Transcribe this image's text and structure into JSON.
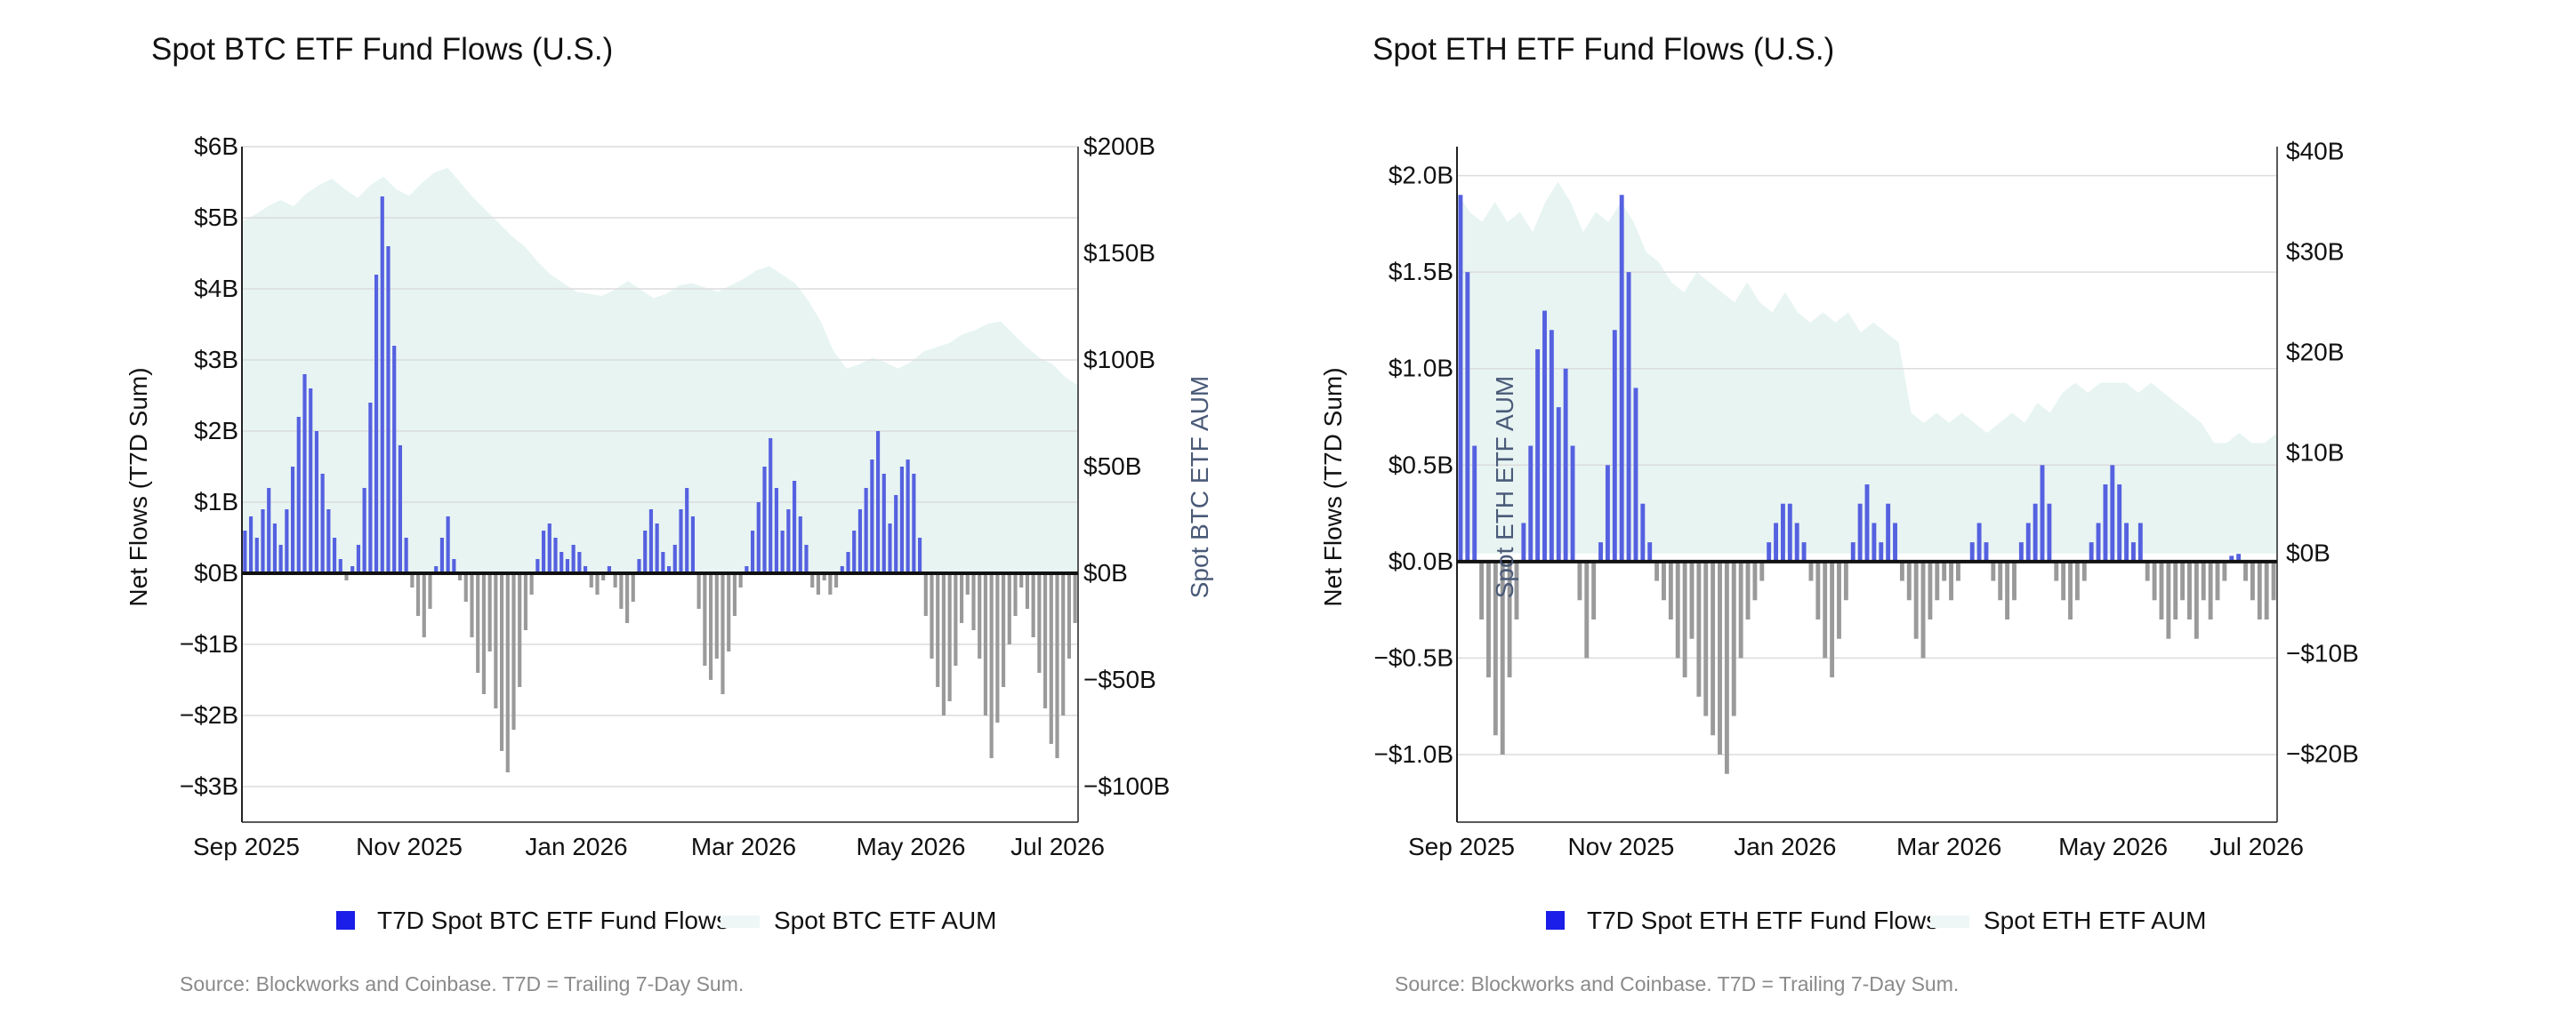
{
  "chart_data": [
    {
      "type": "bar",
      "title": "Spot BTC ETF Fund Flows (U.S.)",
      "ylabel": "Net Flows (T7D Sum)",
      "y2label": "Spot BTC ETF AUM",
      "ylim": [
        -3.5,
        6
      ],
      "y2lim": [
        -116.67,
        200
      ],
      "yticks": [
        6,
        5,
        4,
        3,
        2,
        1,
        0,
        -1,
        -2,
        -3
      ],
      "ytick_labels": [
        "$6B",
        "$5B",
        "$4B",
        "$3B",
        "$2B",
        "$1B",
        "$0B",
        "−$1B",
        "−$2B",
        "−$3B"
      ],
      "y2ticks": [
        200,
        150,
        100,
        50,
        0,
        -50,
        -100
      ],
      "y2tick_labels": [
        "$200B",
        "$150B",
        "$100B",
        "$50B",
        "$0B",
        "−$50B",
        "−$100B"
      ],
      "xticks": [
        "Sep 2025",
        "Nov 2025",
        "Jan 2026",
        "Mar 2026",
        "May 2026",
        "Jul 2026"
      ],
      "series": [
        {
          "name": "T7D Spot BTC ETF Fund Flows",
          "kind": "bar",
          "positive_color": "#5561e0",
          "negative_color": "#9a9a9a",
          "values": [
            0.6,
            0.8,
            0.5,
            0.9,
            1.2,
            0.7,
            0.4,
            0.9,
            1.5,
            2.2,
            2.8,
            2.6,
            2.0,
            1.4,
            0.9,
            0.5,
            0.2,
            -0.1,
            0.1,
            0.4,
            1.2,
            2.4,
            4.2,
            5.3,
            4.6,
            3.2,
            1.8,
            0.5,
            -0.2,
            -0.6,
            -0.9,
            -0.5,
            0.1,
            0.5,
            0.8,
            0.2,
            -0.1,
            -0.4,
            -0.9,
            -1.4,
            -1.7,
            -1.1,
            -1.9,
            -2.5,
            -2.8,
            -2.2,
            -1.6,
            -0.8,
            -0.3,
            0.2,
            0.6,
            0.7,
            0.5,
            0.3,
            0.2,
            0.4,
            0.3,
            0.1,
            -0.2,
            -0.3,
            -0.1,
            0.1,
            -0.2,
            -0.5,
            -0.7,
            -0.4,
            0.2,
            0.6,
            0.9,
            0.7,
            0.3,
            0.1,
            0.4,
            0.9,
            1.2,
            0.8,
            -0.5,
            -1.3,
            -1.5,
            -1.2,
            -1.7,
            -1.1,
            -0.6,
            -0.2,
            0.1,
            0.6,
            1.0,
            1.5,
            1.9,
            1.2,
            0.6,
            0.9,
            1.3,
            0.8,
            0.4,
            -0.2,
            -0.3,
            -0.1,
            -0.3,
            -0.2,
            0.1,
            0.3,
            0.6,
            0.9,
            1.2,
            1.6,
            2.0,
            1.4,
            0.7,
            1.1,
            1.5,
            1.6,
            1.4,
            0.5,
            -0.6,
            -1.2,
            -1.6,
            -2.0,
            -1.8,
            -1.3,
            -0.7,
            -0.3,
            -0.8,
            -1.2,
            -2.0,
            -2.6,
            -2.1,
            -1.6,
            -1.0,
            -0.6,
            -0.2,
            -0.5,
            -0.9,
            -1.4,
            -1.9,
            -2.4,
            -2.6,
            -2.0,
            -1.2,
            -0.7
          ]
        },
        {
          "name": "Spot BTC ETF AUM",
          "kind": "area",
          "color": "#e4f3f1",
          "values": [
            165,
            168,
            172,
            175,
            172,
            178,
            182,
            185,
            180,
            176,
            182,
            186,
            180,
            177,
            183,
            188,
            190,
            183,
            176,
            170,
            164,
            158,
            153,
            146,
            140,
            136,
            132,
            131,
            130,
            133,
            137,
            133,
            129,
            131,
            135,
            136,
            134,
            132,
            135,
            138,
            142,
            144,
            140,
            136,
            128,
            118,
            104,
            96,
            98,
            101,
            99,
            96,
            99,
            104,
            106,
            108,
            112,
            114,
            117,
            118,
            112,
            106,
            101,
            98,
            92,
            88
          ]
        }
      ]
    },
    {
      "type": "bar",
      "title": "Spot ETH ETF Fund Flows (U.S.)",
      "ylabel": "Net Flows (T7D Sum)",
      "y2label": "Spot ETH ETF AUM",
      "ylim": [
        -1.35,
        2.15
      ],
      "y2lim": [
        -26.75,
        40.5
      ],
      "yticks": [
        2.0,
        1.5,
        1.0,
        0.5,
        0.0,
        -0.5,
        -1.0
      ],
      "ytick_labels": [
        "$2.0B",
        "$1.5B",
        "$1.0B",
        "$0.5B",
        "$0.0B",
        "−$0.5B",
        "−$1.0B"
      ],
      "y2ticks": [
        40,
        30,
        20,
        10,
        0,
        -10,
        -20
      ],
      "y2tick_labels": [
        "$40B",
        "$30B",
        "$20B",
        "$10B",
        "$0B",
        "−$10B",
        "−$20B"
      ],
      "xticks": [
        "Sep 2025",
        "Nov 2025",
        "Jan 2026",
        "Mar 2026",
        "May 2026",
        "Jul 2026"
      ],
      "series": [
        {
          "name": "T7D Spot ETH ETF Fund Flows",
          "kind": "bar",
          "positive_color": "#5561e0",
          "negative_color": "#9a9a9a",
          "values": [
            1.9,
            1.5,
            0.6,
            -0.3,
            -0.6,
            -0.9,
            -1.0,
            -0.6,
            -0.3,
            0.2,
            0.6,
            1.1,
            1.3,
            1.2,
            0.8,
            1.0,
            0.6,
            -0.2,
            -0.5,
            -0.3,
            0.1,
            0.5,
            1.2,
            1.9,
            1.5,
            0.9,
            0.3,
            0.1,
            -0.1,
            -0.2,
            -0.3,
            -0.5,
            -0.6,
            -0.4,
            -0.7,
            -0.8,
            -0.9,
            -1.0,
            -1.1,
            -0.8,
            -0.5,
            -0.3,
            -0.2,
            -0.1,
            0.1,
            0.2,
            0.3,
            0.3,
            0.2,
            0.1,
            -0.1,
            -0.3,
            -0.5,
            -0.6,
            -0.4,
            -0.2,
            0.1,
            0.3,
            0.4,
            0.2,
            0.1,
            0.3,
            0.2,
            -0.1,
            -0.2,
            -0.4,
            -0.5,
            -0.3,
            -0.2,
            -0.1,
            -0.2,
            -0.1,
            0.0,
            0.1,
            0.2,
            0.1,
            -0.1,
            -0.2,
            -0.3,
            -0.2,
            0.1,
            0.2,
            0.3,
            0.5,
            0.3,
            -0.1,
            -0.2,
            -0.3,
            -0.2,
            -0.1,
            0.1,
            0.2,
            0.4,
            0.5,
            0.4,
            0.2,
            0.1,
            0.2,
            -0.1,
            -0.2,
            -0.3,
            -0.4,
            -0.3,
            -0.2,
            -0.3,
            -0.4,
            -0.2,
            -0.3,
            -0.2,
            -0.1,
            0.03,
            0.04,
            -0.1,
            -0.2,
            -0.3,
            -0.3,
            -0.2
          ]
        },
        {
          "name": "Spot ETH ETF AUM",
          "kind": "area",
          "color": "#e4f3f1",
          "values": [
            36,
            34,
            33,
            35,
            33,
            34,
            32,
            35,
            37,
            35,
            32,
            34,
            33,
            35,
            33,
            30,
            29,
            27,
            26,
            28,
            27,
            26,
            25,
            27,
            25,
            24,
            26,
            24,
            23,
            24,
            23,
            24,
            22,
            23,
            22,
            21,
            14,
            13,
            14,
            13,
            14,
            13,
            12,
            13,
            14,
            13,
            15,
            14,
            16,
            17,
            16,
            17,
            17,
            17,
            16,
            17,
            16,
            15,
            14,
            13,
            11,
            11,
            12,
            11,
            11,
            12
          ]
        }
      ]
    }
  ],
  "charts": [
    {
      "title": "Spot BTC ETF Fund Flows (U.S.)",
      "legend": {
        "flows_label": "T7D Spot BTC ETF Fund Flows",
        "aum_label": "Spot BTC ETF AUM"
      },
      "source": "Source: Blockworks and Coinbase. T7D = Trailing 7-Day Sum."
    },
    {
      "title": "Spot ETH ETF Fund Flows (U.S.)",
      "legend": {
        "flows_label": "T7D Spot ETH ETF Fund Flows",
        "aum_label": "Spot ETH ETF AUM"
      },
      "source": "Source: Blockworks and Coinbase. T7D = Trailing 7-Day Sum."
    }
  ],
  "colors": {
    "positive_bar": "#5561e0",
    "negative_bar": "#9a9a9a",
    "legend_flows": "#1a1ee8",
    "aum_fill": "#e4f3f1",
    "axis": "#222222",
    "grid": "#dcdcdc",
    "right_axis_label": "#4a5a78",
    "source_text": "#8a8a8a"
  }
}
